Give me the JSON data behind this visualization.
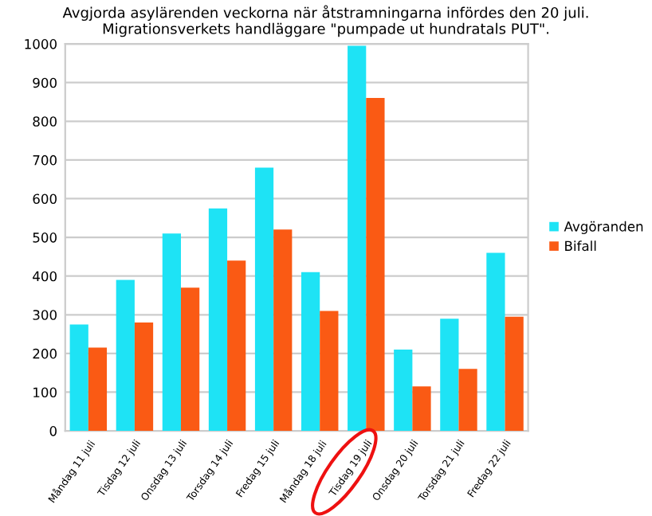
{
  "chart_data": {
    "type": "bar",
    "title": "Avgjorda asylärenden veckorna när åtstramningarna infördes den 20 juli.\nMigrationsverkets handläggare \"pumpade ut hundratals PUT\".",
    "categories": [
      "Måndag 11 juli",
      "Tisdag 12 juli",
      "Onsdag 13 juli",
      "Torsdag 14 juli",
      "Fredag 15 juli",
      "Måndag 18 juli",
      "Tisdag 19 juli",
      "Onsdag 20 juli",
      "Torsdag 21 juli",
      "Fredag 22 juli"
    ],
    "series": [
      {
        "name": "Avgöranden",
        "color": "#1ee3f5",
        "values": [
          275,
          390,
          510,
          575,
          680,
          410,
          995,
          210,
          290,
          460
        ]
      },
      {
        "name": "Bifall",
        "color": "#fa5a14",
        "values": [
          215,
          280,
          370,
          440,
          520,
          310,
          860,
          115,
          160,
          295
        ]
      }
    ],
    "ylim": [
      0,
      1000
    ],
    "yticks": [
      0,
      100,
      200,
      300,
      400,
      500,
      600,
      700,
      800,
      900,
      1000
    ],
    "grid": "y",
    "legend": "right"
  }
}
